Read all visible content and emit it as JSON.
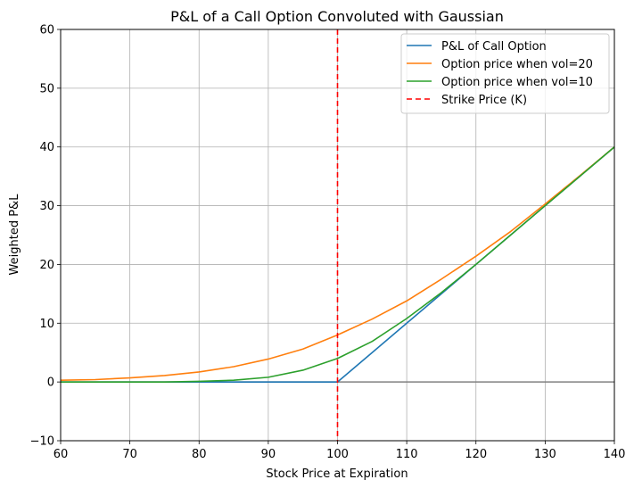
{
  "chart_data": {
    "type": "line",
    "title": "P&L of a Call Option Convoluted with Gaussian",
    "xlabel": "Stock Price at Expiration",
    "ylabel": "Weighted P&L",
    "xlim": [
      60,
      140
    ],
    "ylim": [
      -10,
      60
    ],
    "xticks": [
      60,
      70,
      80,
      90,
      100,
      110,
      120,
      130,
      140
    ],
    "yticks": [
      -10,
      0,
      10,
      20,
      30,
      40,
      50,
      60
    ],
    "xtick_labels": [
      "60",
      "70",
      "80",
      "90",
      "100",
      "110",
      "120",
      "130",
      "140"
    ],
    "ytick_labels": [
      "−10",
      "0",
      "10",
      "20",
      "30",
      "40",
      "50",
      "60"
    ],
    "grid": true,
    "legend_position": "top-right",
    "strike": 100,
    "zero_line": 0,
    "x": [
      60,
      65,
      70,
      75,
      80,
      85,
      90,
      95,
      100,
      105,
      110,
      115,
      120,
      125,
      130,
      135,
      140
    ],
    "series": [
      {
        "name": "P&L of Call Option",
        "color": "#1f77b4",
        "style": "solid",
        "values": [
          0,
          0,
          0,
          0,
          0,
          0,
          0,
          0,
          0,
          5,
          10,
          15,
          20,
          25,
          30,
          35,
          40
        ]
      },
      {
        "name": "Option price when vol=20",
        "color": "#ff7f0e",
        "style": "solid",
        "values": [
          0.3,
          0.4,
          0.7,
          1.1,
          1.7,
          2.6,
          3.9,
          5.6,
          8.0,
          10.7,
          13.8,
          17.5,
          21.4,
          25.6,
          30.3,
          35.1,
          40.0
        ]
      },
      {
        "name": "Option price when vol=10",
        "color": "#2ca02c",
        "style": "solid",
        "values": [
          0,
          0,
          0,
          0,
          0.1,
          0.3,
          0.8,
          2.0,
          4.0,
          6.9,
          10.8,
          15.2,
          20.0,
          25.0,
          30.0,
          35.0,
          40.0
        ]
      }
    ],
    "reference_line": {
      "name": "Strike Price (K)",
      "color": "#ff0000",
      "style": "dashed",
      "x": 100
    }
  }
}
